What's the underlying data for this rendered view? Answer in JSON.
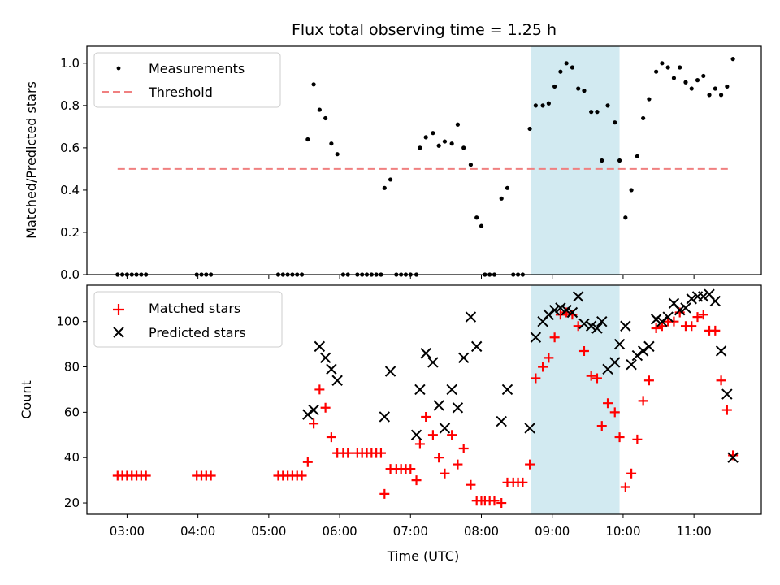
{
  "chart_data": [
    {
      "type": "scatter",
      "title": "Flux total observing time = 1.25 h",
      "xlabel": "",
      "ylabel": "Matched/Predicted stars",
      "ylim": [
        0,
        1.08
      ],
      "yticks": [
        "0.0",
        "0.2",
        "0.4",
        "0.6",
        "0.8",
        "1.0"
      ],
      "shaded_span": [
        "08:42",
        "09:57"
      ],
      "shade_color": "#add8e6",
      "legend": {
        "placement": "top-left",
        "entries": [
          "Measurements",
          "Threshold"
        ]
      },
      "threshold": {
        "name": "Threshold",
        "value": 0.5,
        "x_range": [
          "02:52",
          "11:32"
        ],
        "color": "#f08080",
        "style": "dashed"
      },
      "series": [
        {
          "name": "Measurements",
          "marker": "dot",
          "color": "#000000",
          "points": [
            [
              "02:52",
              0
            ],
            [
              "02:56",
              0
            ],
            [
              "03:00",
              0
            ],
            [
              "03:04",
              0
            ],
            [
              "03:08",
              0
            ],
            [
              "03:12",
              0
            ],
            [
              "03:16",
              0
            ],
            [
              "03:59",
              0
            ],
            [
              "04:03",
              0
            ],
            [
              "04:07",
              0
            ],
            [
              "04:11",
              0
            ],
            [
              "05:08",
              0
            ],
            [
              "05:12",
              0
            ],
            [
              "05:16",
              0
            ],
            [
              "05:20",
              0
            ],
            [
              "05:24",
              0
            ],
            [
              "05:28",
              0
            ],
            [
              "05:33",
              0.64
            ],
            [
              "05:38",
              0.9
            ],
            [
              "05:43",
              0.78
            ],
            [
              "05:48",
              0.74
            ],
            [
              "05:53",
              0.62
            ],
            [
              "05:58",
              0.57
            ],
            [
              "06:03",
              0
            ],
            [
              "06:07",
              0
            ],
            [
              "06:15",
              0
            ],
            [
              "06:19",
              0
            ],
            [
              "06:23",
              0
            ],
            [
              "06:27",
              0
            ],
            [
              "06:31",
              0
            ],
            [
              "06:35",
              0
            ],
            [
              "06:38",
              0.41
            ],
            [
              "06:43",
              0.45
            ],
            [
              "06:48",
              0
            ],
            [
              "06:52",
              0
            ],
            [
              "06:56",
              0
            ],
            [
              "07:00",
              0
            ],
            [
              "07:05",
              0
            ],
            [
              "07:08",
              0.6
            ],
            [
              "07:13",
              0.65
            ],
            [
              "07:19",
              0.67
            ],
            [
              "07:24",
              0.61
            ],
            [
              "07:29",
              0.63
            ],
            [
              "07:35",
              0.62
            ],
            [
              "07:40",
              0.71
            ],
            [
              "07:45",
              0.6
            ],
            [
              "07:51",
              0.52
            ],
            [
              "07:56",
              0.27
            ],
            [
              "08:00",
              0.23
            ],
            [
              "08:03",
              0
            ],
            [
              "08:07",
              0
            ],
            [
              "08:11",
              0
            ],
            [
              "08:17",
              0.36
            ],
            [
              "08:22",
              0.41
            ],
            [
              "08:27",
              0
            ],
            [
              "08:31",
              0
            ],
            [
              "08:35",
              0
            ],
            [
              "08:41",
              0.69
            ],
            [
              "08:46",
              0.8
            ],
            [
              "08:52",
              0.8
            ],
            [
              "08:57",
              0.81
            ],
            [
              "09:02",
              0.89
            ],
            [
              "09:07",
              0.96
            ],
            [
              "09:12",
              1.0
            ],
            [
              "09:17",
              0.98
            ],
            [
              "09:22",
              0.88
            ],
            [
              "09:27",
              0.87
            ],
            [
              "09:33",
              0.77
            ],
            [
              "09:38",
              0.77
            ],
            [
              "09:42",
              0.54
            ],
            [
              "09:47",
              0.8
            ],
            [
              "09:53",
              0.72
            ],
            [
              "09:57",
              0.54
            ],
            [
              "10:02",
              0.27
            ],
            [
              "10:07",
              0.4
            ],
            [
              "10:12",
              0.56
            ],
            [
              "10:17",
              0.74
            ],
            [
              "10:22",
              0.83
            ],
            [
              "10:28",
              0.96
            ],
            [
              "10:33",
              1.0
            ],
            [
              "10:38",
              0.98
            ],
            [
              "10:43",
              0.93
            ],
            [
              "10:48",
              0.98
            ],
            [
              "10:53",
              0.91
            ],
            [
              "10:58",
              0.88
            ],
            [
              "11:03",
              0.92
            ],
            [
              "11:08",
              0.94
            ],
            [
              "11:13",
              0.85
            ],
            [
              "11:18",
              0.88
            ],
            [
              "11:23",
              0.85
            ],
            [
              "11:28",
              0.89
            ],
            [
              "11:33",
              1.02
            ]
          ]
        }
      ]
    },
    {
      "type": "scatter",
      "title": "",
      "xlabel": "Time (UTC)",
      "ylabel": "Count",
      "ylim": [
        15,
        116
      ],
      "yticks": [
        "20",
        "40",
        "60",
        "80",
        "100"
      ],
      "xlim": [
        "02:26",
        "11:57"
      ],
      "xticks": [
        "03:00",
        "04:00",
        "05:00",
        "06:00",
        "07:00",
        "08:00",
        "09:00",
        "10:00",
        "11:00"
      ],
      "shaded_span": [
        "08:42",
        "09:57"
      ],
      "shade_color": "#add8e6",
      "legend": {
        "placement": "top-left",
        "entries": [
          "Matched stars",
          "Predicted stars"
        ]
      },
      "series": [
        {
          "name": "Matched stars",
          "marker": "plus",
          "color": "#ff0000",
          "points": [
            [
              "02:52",
              32
            ],
            [
              "02:56",
              32
            ],
            [
              "03:00",
              32
            ],
            [
              "03:04",
              32
            ],
            [
              "03:08",
              32
            ],
            [
              "03:12",
              32
            ],
            [
              "03:16",
              32
            ],
            [
              "03:59",
              32
            ],
            [
              "04:03",
              32
            ],
            [
              "04:07",
              32
            ],
            [
              "04:11",
              32
            ],
            [
              "05:08",
              32
            ],
            [
              "05:12",
              32
            ],
            [
              "05:16",
              32
            ],
            [
              "05:20",
              32
            ],
            [
              "05:24",
              32
            ],
            [
              "05:28",
              32
            ],
            [
              "05:33",
              38
            ],
            [
              "05:38",
              55
            ],
            [
              "05:43",
              70
            ],
            [
              "05:48",
              62
            ],
            [
              "05:53",
              49
            ],
            [
              "05:58",
              42
            ],
            [
              "06:03",
              42
            ],
            [
              "06:07",
              42
            ],
            [
              "06:15",
              42
            ],
            [
              "06:19",
              42
            ],
            [
              "06:23",
              42
            ],
            [
              "06:27",
              42
            ],
            [
              "06:31",
              42
            ],
            [
              "06:35",
              42
            ],
            [
              "06:38",
              24
            ],
            [
              "06:43",
              35
            ],
            [
              "06:48",
              35
            ],
            [
              "06:52",
              35
            ],
            [
              "06:56",
              35
            ],
            [
              "07:00",
              35
            ],
            [
              "07:05",
              30
            ],
            [
              "07:08",
              46
            ],
            [
              "07:13",
              58
            ],
            [
              "07:19",
              50
            ],
            [
              "07:24",
              40
            ],
            [
              "07:29",
              33
            ],
            [
              "07:35",
              50
            ],
            [
              "07:40",
              37
            ],
            [
              "07:45",
              44
            ],
            [
              "07:51",
              28
            ],
            [
              "07:56",
              21
            ],
            [
              "08:00",
              21
            ],
            [
              "08:03",
              21
            ],
            [
              "08:07",
              21
            ],
            [
              "08:11",
              21
            ],
            [
              "08:17",
              20
            ],
            [
              "08:22",
              29
            ],
            [
              "08:27",
              29
            ],
            [
              "08:31",
              29
            ],
            [
              "08:35",
              29
            ],
            [
              "08:41",
              37
            ],
            [
              "08:46",
              75
            ],
            [
              "08:52",
              80
            ],
            [
              "08:57",
              84
            ],
            [
              "09:02",
              93
            ],
            [
              "09:07",
              103
            ],
            [
              "09:12",
              104
            ],
            [
              "09:17",
              103
            ],
            [
              "09:22",
              98
            ],
            [
              "09:27",
              87
            ],
            [
              "09:33",
              76
            ],
            [
              "09:38",
              75
            ],
            [
              "09:42",
              54
            ],
            [
              "09:47",
              64
            ],
            [
              "09:53",
              60
            ],
            [
              "09:57",
              49
            ],
            [
              "10:02",
              27
            ],
            [
              "10:07",
              33
            ],
            [
              "10:12",
              48
            ],
            [
              "10:17",
              65
            ],
            [
              "10:22",
              74
            ],
            [
              "10:28",
              97
            ],
            [
              "10:33",
              98
            ],
            [
              "10:38",
              100
            ],
            [
              "10:43",
              100
            ],
            [
              "10:48",
              104
            ],
            [
              "10:53",
              98
            ],
            [
              "10:58",
              98
            ],
            [
              "11:03",
              102
            ],
            [
              "11:08",
              103
            ],
            [
              "11:13",
              96
            ],
            [
              "11:18",
              96
            ],
            [
              "11:23",
              74
            ],
            [
              "11:28",
              61
            ],
            [
              "11:33",
              41
            ]
          ]
        },
        {
          "name": "Predicted stars",
          "marker": "x",
          "color": "#000000",
          "points": [
            [
              "05:33",
              59
            ],
            [
              "05:38",
              61
            ],
            [
              "05:43",
              89
            ],
            [
              "05:48",
              84
            ],
            [
              "05:53",
              79
            ],
            [
              "05:58",
              74
            ],
            [
              "06:38",
              58
            ],
            [
              "06:43",
              78
            ],
            [
              "07:05",
              50
            ],
            [
              "07:08",
              70
            ],
            [
              "07:13",
              86
            ],
            [
              "07:19",
              82
            ],
            [
              "07:24",
              63
            ],
            [
              "07:29",
              53
            ],
            [
              "07:35",
              70
            ],
            [
              "07:40",
              62
            ],
            [
              "07:45",
              84
            ],
            [
              "07:51",
              102
            ],
            [
              "07:56",
              89
            ],
            [
              "08:17",
              56
            ],
            [
              "08:22",
              70
            ],
            [
              "08:41",
              53
            ],
            [
              "08:46",
              93
            ],
            [
              "08:52",
              100
            ],
            [
              "08:57",
              103
            ],
            [
              "09:02",
              105
            ],
            [
              "09:07",
              106
            ],
            [
              "09:12",
              105
            ],
            [
              "09:17",
              104
            ],
            [
              "09:22",
              111
            ],
            [
              "09:27",
              99
            ],
            [
              "09:33",
              98
            ],
            [
              "09:38",
              97
            ],
            [
              "09:42",
              100
            ],
            [
              "09:47",
              79
            ],
            [
              "09:53",
              82
            ],
            [
              "09:57",
              90
            ],
            [
              "10:02",
              98
            ],
            [
              "10:07",
              81
            ],
            [
              "10:12",
              85
            ],
            [
              "10:17",
              87
            ],
            [
              "10:22",
              89
            ],
            [
              "10:28",
              101
            ],
            [
              "10:33",
              100
            ],
            [
              "10:38",
              102
            ],
            [
              "10:43",
              108
            ],
            [
              "10:48",
              105
            ],
            [
              "10:53",
              106
            ],
            [
              "10:58",
              110
            ],
            [
              "11:03",
              111
            ],
            [
              "11:08",
              111
            ],
            [
              "11:13",
              112
            ],
            [
              "11:18",
              109
            ],
            [
              "11:23",
              87
            ],
            [
              "11:28",
              68
            ],
            [
              "11:33",
              40
            ]
          ]
        }
      ]
    }
  ]
}
